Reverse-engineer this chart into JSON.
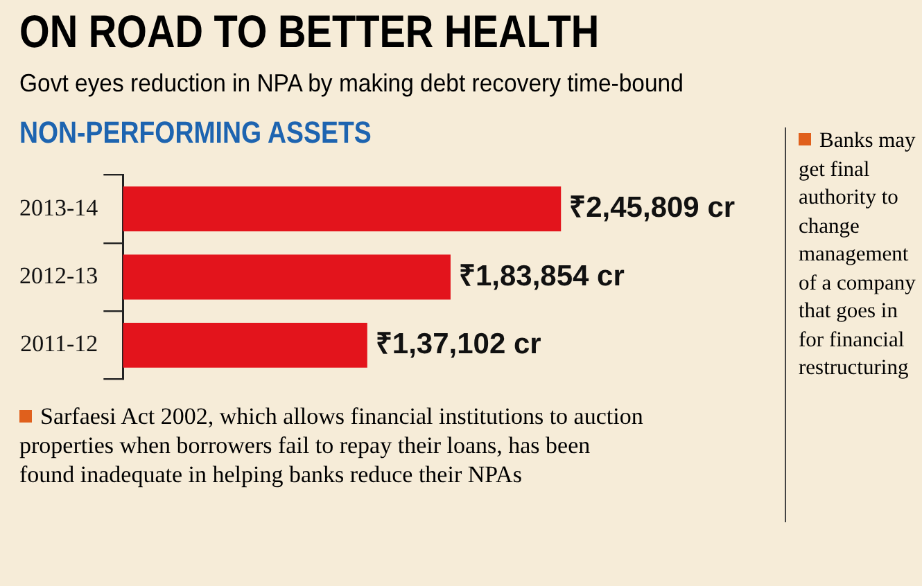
{
  "chart_data": {
    "type": "bar",
    "orientation": "horizontal",
    "title": "ON ROAD TO BETTER HEALTH",
    "subtitle": "Govt eyes reduction in NPA by making debt recovery time-bound",
    "ylabel": "NON-PERFORMING ASSETS",
    "categories": [
      "2013-14",
      "2012-13",
      "2011-12"
    ],
    "values": [
      245809,
      183854,
      137102
    ],
    "value_labels": [
      "₹2,45,809 cr",
      "₹1,83,854 cr",
      "₹1,37,102 cr"
    ],
    "color": "#e3141c",
    "annotations": [
      "Sarfaesi Act 2002, which allows financial institutions to auction properties when borrowers fail to repay their loans, has been found inadequate in helping banks reduce their NPAs",
      "Banks may get final authority to change management of a company that goes in for financial restructuring"
    ],
    "legend": false
  }
}
